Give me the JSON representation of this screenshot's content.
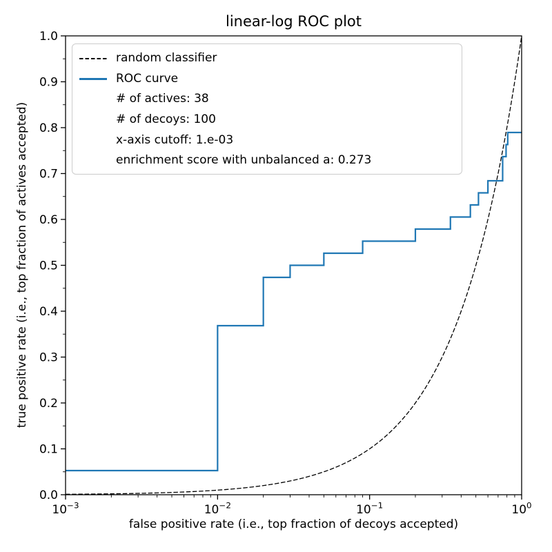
{
  "figure": {
    "title": "linear-log ROC plot",
    "xlabel": "false positive rate (i.e., top fraction of decoys accepted)",
    "ylabel": "true positive rate (i.e., top fraction of actives accepted)"
  },
  "legend": {
    "items": [
      {
        "handle": "dashed",
        "label": "random classifier"
      },
      {
        "handle": "solid",
        "label": "ROC curve"
      },
      {
        "handle": "none",
        "label": "# of actives: 38"
      },
      {
        "handle": "none",
        "label": "# of decoys: 100"
      },
      {
        "handle": "none",
        "label": "x-axis cutoff: 1.e-03"
      },
      {
        "handle": "none",
        "label": "enrichment score with unbalanced a: 0.273"
      }
    ]
  },
  "chart_data": {
    "type": "line",
    "title": "linear-log ROC plot",
    "xlabel": "false positive rate (i.e., top fraction of decoys accepted)",
    "ylabel": "true positive rate (i.e., top fraction of actives accepted)",
    "x_scale": "log",
    "y_scale": "linear",
    "xlim": [
      0.001,
      1
    ],
    "ylim": [
      0,
      1
    ],
    "x_tick_exponents": [
      -3,
      -2,
      -1,
      0
    ],
    "y_tick_labels": [
      "0.0",
      "0.1",
      "0.2",
      "0.3",
      "0.4",
      "0.5",
      "0.6",
      "0.7",
      "0.8",
      "0.9",
      "1.0"
    ],
    "grid": false,
    "legend_position": "upper left",
    "stats": {
      "n_actives": 38,
      "n_decoys": 100,
      "x_axis_cutoff": "1.e-03",
      "enrichment_score_with_unbalanced_a": 0.273
    },
    "series": [
      {
        "name": "random classifier",
        "type": "function",
        "definition": "y = x (diagonal of ROC space, appears exponential on log x-axis)",
        "style": "dashed",
        "color": "#000000",
        "endpoints": [
          [
            0.001,
            0.001
          ],
          [
            1.0,
            1.0
          ]
        ]
      },
      {
        "name": "ROC curve",
        "type": "step",
        "style": "solid",
        "color": "#1f77b4",
        "points": [
          [
            0.001,
            0.0526
          ],
          [
            0.01,
            0.0526
          ],
          [
            0.01,
            0.3684
          ],
          [
            0.02,
            0.3684
          ],
          [
            0.02,
            0.4737
          ],
          [
            0.03,
            0.4737
          ],
          [
            0.03,
            0.5
          ],
          [
            0.05,
            0.5
          ],
          [
            0.05,
            0.5263
          ],
          [
            0.09,
            0.5263
          ],
          [
            0.09,
            0.5526
          ],
          [
            0.2,
            0.5526
          ],
          [
            0.2,
            0.5789
          ],
          [
            0.34,
            0.5789
          ],
          [
            0.34,
            0.6053
          ],
          [
            0.46,
            0.6053
          ],
          [
            0.46,
            0.6316
          ],
          [
            0.52,
            0.6316
          ],
          [
            0.52,
            0.6579
          ],
          [
            0.6,
            0.6579
          ],
          [
            0.6,
            0.6842
          ],
          [
            0.75,
            0.6842
          ],
          [
            0.75,
            0.7368
          ],
          [
            0.79,
            0.7368
          ],
          [
            0.79,
            0.7632
          ],
          [
            0.81,
            0.7632
          ],
          [
            0.81,
            0.7895
          ],
          [
            1.0,
            0.7895
          ]
        ]
      }
    ]
  }
}
